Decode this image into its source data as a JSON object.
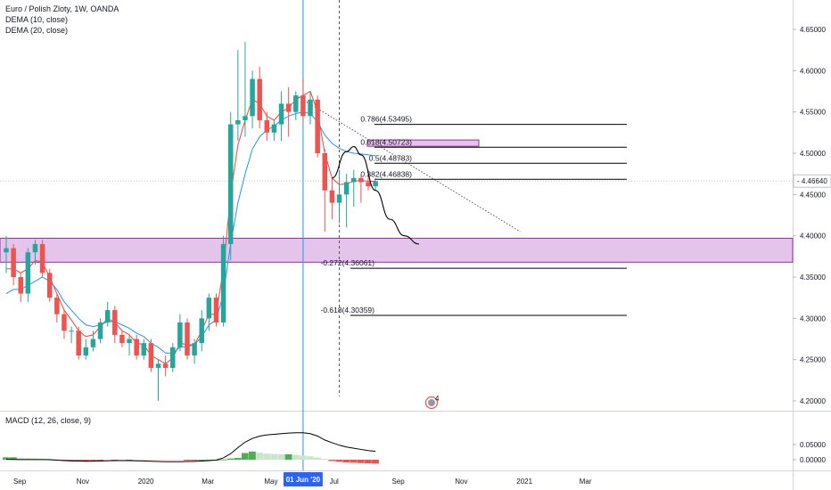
{
  "legend": {
    "symbol": "Euro / Polish Zloty, 1W, OANDA",
    "dema10": "DEMA (10, close)",
    "dema20": "DEMA (20, close)",
    "macd": "MACD (12, 26, close, 9)"
  },
  "colors": {
    "up": "#26a69a",
    "down": "#ef5350",
    "dema10": "#f44336",
    "dema20": "#2196f3",
    "zone_fill": "#ce93d8",
    "zone_border": "#9c27b0",
    "macd_line": "#000000",
    "hist_up_strong": "#4caf50",
    "hist_up_weak": "#c8e6c9",
    "hist_down_strong": "#ef5350",
    "hist_down_weak": "#ffcdd2"
  },
  "axis": {
    "price_ticks": [
      "4.65000",
      "4.60000",
      "4.55000",
      "4.50000",
      "4.45000",
      "4.40000",
      "4.35000",
      "4.30000",
      "4.25000",
      "4.20000"
    ],
    "current_price": "4.46640",
    "macd_ticks": [
      "0.05000",
      "0.00000"
    ],
    "time_ticks": [
      "Sep",
      "Nov",
      "2020",
      "Mar",
      "May",
      "Jul",
      "Sep",
      "Nov",
      "2021",
      "Mar"
    ],
    "cursor_date": "01 Jun '20"
  },
  "badge": {
    "count": "4"
  },
  "chart_data": {
    "type": "candlestick",
    "title": "Euro / Polish Zloty, 1W, OANDA",
    "x_range": [
      "2019-08-19",
      "2021-04-05"
    ],
    "y_range": [
      4.17,
      4.685
    ],
    "grid": false,
    "candles": [
      {
        "o": 4.38,
        "h": 4.4,
        "l": 4.355,
        "c": 4.385
      },
      {
        "o": 4.385,
        "h": 4.39,
        "l": 4.34,
        "c": 4.35
      },
      {
        "o": 4.35,
        "h": 4.355,
        "l": 4.32,
        "c": 4.33
      },
      {
        "o": 4.33,
        "h": 4.385,
        "l": 4.32,
        "c": 4.38
      },
      {
        "o": 4.38,
        "h": 4.395,
        "l": 4.365,
        "c": 4.39
      },
      {
        "o": 4.39,
        "h": 4.395,
        "l": 4.35,
        "c": 4.355
      },
      {
        "o": 4.355,
        "h": 4.36,
        "l": 4.32,
        "c": 4.325
      },
      {
        "o": 4.325,
        "h": 4.33,
        "l": 4.295,
        "c": 4.305
      },
      {
        "o": 4.305,
        "h": 4.31,
        "l": 4.275,
        "c": 4.285
      },
      {
        "o": 4.285,
        "h": 4.29,
        "l": 4.27,
        "c": 4.285
      },
      {
        "o": 4.285,
        "h": 4.29,
        "l": 4.25,
        "c": 4.255
      },
      {
        "o": 4.255,
        "h": 4.275,
        "l": 4.25,
        "c": 4.265
      },
      {
        "o": 4.265,
        "h": 4.285,
        "l": 4.26,
        "c": 4.275
      },
      {
        "o": 4.275,
        "h": 4.3,
        "l": 4.27,
        "c": 4.295
      },
      {
        "o": 4.295,
        "h": 4.32,
        "l": 4.29,
        "c": 4.31
      },
      {
        "o": 4.31,
        "h": 4.315,
        "l": 4.27,
        "c": 4.28
      },
      {
        "o": 4.28,
        "h": 4.285,
        "l": 4.265,
        "c": 4.27
      },
      {
        "o": 4.27,
        "h": 4.28,
        "l": 4.255,
        "c": 4.275
      },
      {
        "o": 4.275,
        "h": 4.28,
        "l": 4.25,
        "c": 4.255
      },
      {
        "o": 4.255,
        "h": 4.275,
        "l": 4.25,
        "c": 4.27
      },
      {
        "o": 4.27,
        "h": 4.275,
        "l": 4.235,
        "c": 4.24
      },
      {
        "o": 4.24,
        "h": 4.25,
        "l": 4.2,
        "c": 4.245
      },
      {
        "o": 4.245,
        "h": 4.255,
        "l": 4.23,
        "c": 4.24
      },
      {
        "o": 4.24,
        "h": 4.27,
        "l": 4.235,
        "c": 4.265
      },
      {
        "o": 4.265,
        "h": 4.305,
        "l": 4.26,
        "c": 4.295
      },
      {
        "o": 4.295,
        "h": 4.3,
        "l": 4.25,
        "c": 4.255
      },
      {
        "o": 4.255,
        "h": 4.275,
        "l": 4.245,
        "c": 4.27
      },
      {
        "o": 4.27,
        "h": 4.31,
        "l": 4.26,
        "c": 4.3
      },
      {
        "o": 4.3,
        "h": 4.33,
        "l": 4.285,
        "c": 4.325
      },
      {
        "o": 4.325,
        "h": 4.33,
        "l": 4.29,
        "c": 4.295
      },
      {
        "o": 4.295,
        "h": 4.4,
        "l": 4.29,
        "c": 4.39
      },
      {
        "o": 4.39,
        "h": 4.55,
        "l": 4.37,
        "c": 4.535
      },
      {
        "o": 4.535,
        "h": 4.625,
        "l": 4.515,
        "c": 4.54
      },
      {
        "o": 4.54,
        "h": 4.635,
        "l": 4.52,
        "c": 4.545
      },
      {
        "o": 4.545,
        "h": 4.6,
        "l": 4.53,
        "c": 4.59
      },
      {
        "o": 4.59,
        "h": 4.605,
        "l": 4.53,
        "c": 4.54
      },
      {
        "o": 4.54,
        "h": 4.55,
        "l": 4.515,
        "c": 4.525
      },
      {
        "o": 4.525,
        "h": 4.54,
        "l": 4.515,
        "c": 4.535
      },
      {
        "o": 4.535,
        "h": 4.575,
        "l": 4.515,
        "c": 4.56
      },
      {
        "o": 4.56,
        "h": 4.58,
        "l": 4.52,
        "c": 4.55
      },
      {
        "o": 4.55,
        "h": 4.575,
        "l": 4.54,
        "c": 4.57
      },
      {
        "o": 4.57,
        "h": 4.59,
        "l": 4.54,
        "c": 4.545
      },
      {
        "o": 4.545,
        "h": 4.575,
        "l": 4.535,
        "c": 4.565
      },
      {
        "o": 4.565,
        "h": 4.57,
        "l": 4.495,
        "c": 4.5
      },
      {
        "o": 4.5,
        "h": 4.505,
        "l": 4.405,
        "c": 4.455
      },
      {
        "o": 4.455,
        "h": 4.47,
        "l": 4.42,
        "c": 4.44
      },
      {
        "o": 4.44,
        "h": 4.48,
        "l": 4.415,
        "c": 4.45
      },
      {
        "o": 4.45,
        "h": 4.475,
        "l": 4.41,
        "c": 4.465
      },
      {
        "o": 4.465,
        "h": 4.48,
        "l": 4.435,
        "c": 4.47
      },
      {
        "o": 4.47,
        "h": 4.475,
        "l": 4.44,
        "c": 4.465
      },
      {
        "o": 4.465,
        "h": 4.48,
        "l": 4.455,
        "c": 4.46
      },
      {
        "o": 4.46,
        "h": 4.47,
        "l": 4.455,
        "c": 4.466
      }
    ],
    "dema10": [
      4.36,
      4.36,
      4.355,
      4.36,
      4.37,
      4.368,
      4.35,
      4.33,
      4.31,
      4.298,
      4.285,
      4.278,
      4.28,
      4.29,
      4.3,
      4.295,
      4.285,
      4.28,
      4.27,
      4.268,
      4.255,
      4.25,
      4.245,
      4.252,
      4.27,
      4.268,
      4.268,
      4.285,
      4.305,
      4.305,
      4.36,
      4.45,
      4.51,
      4.54,
      4.565,
      4.56,
      4.545,
      4.54,
      4.55,
      4.555,
      4.565,
      4.57,
      4.575,
      4.55,
      4.5,
      4.47,
      4.462,
      4.463,
      4.466,
      4.467,
      4.466,
      4.466
    ],
    "dema20": [
      4.33,
      4.335,
      4.335,
      4.34,
      4.345,
      4.35,
      4.345,
      4.335,
      4.32,
      4.31,
      4.3,
      4.292,
      4.29,
      4.292,
      4.296,
      4.296,
      4.292,
      4.288,
      4.282,
      4.278,
      4.27,
      4.265,
      4.258,
      4.258,
      4.265,
      4.266,
      4.268,
      4.278,
      4.292,
      4.298,
      4.33,
      4.39,
      4.44,
      4.475,
      4.505,
      4.52,
      4.528,
      4.533,
      4.54,
      4.545,
      4.548,
      4.55,
      4.548,
      4.538,
      4.522,
      4.512,
      4.506,
      4.502,
      4.5,
      4.499,
      4.498,
      4.497
    ],
    "macd": [
      0.001,
      0.0008,
      0.0005,
      0.0004,
      0.0004,
      0.0003,
      0.0001,
      -0.0015,
      -0.003,
      -0.004,
      -0.0045,
      -0.005,
      -0.0048,
      -0.004,
      -0.0035,
      -0.003,
      -0.0028,
      -0.003,
      -0.0035,
      -0.004,
      -0.005,
      -0.006,
      -0.0065,
      -0.0068,
      -0.0065,
      -0.006,
      -0.0055,
      -0.0045,
      -0.003,
      -0.001,
      0.006,
      0.02,
      0.04,
      0.058,
      0.07,
      0.078,
      0.082,
      0.084,
      0.086,
      0.088,
      0.089,
      0.089,
      0.086,
      0.078,
      0.065,
      0.056,
      0.048,
      0.042,
      0.038,
      0.034,
      0.03,
      0.028
    ],
    "histogram": [
      0.008,
      0.008,
      0.007,
      0.006,
      0.005,
      0.004,
      0.003,
      0.002,
      -0.001,
      -0.003,
      -0.004,
      -0.005,
      -0.005,
      -0.005,
      -0.0045,
      -0.0045,
      -0.004,
      -0.004,
      -0.0035,
      -0.003,
      -0.0025,
      -0.002,
      -0.0015,
      -0.001,
      -0.0005,
      -0.0005,
      -0.001,
      0.0,
      0.0,
      0.0,
      0.001,
      0.004,
      0.006,
      0.022,
      0.027,
      0.023,
      0.02,
      0.019,
      0.018,
      0.018,
      0.016,
      0.014,
      0.011,
      0.007,
      0.003,
      -0.004,
      -0.007,
      -0.009,
      -0.01,
      -0.011,
      -0.012,
      -0.013
    ],
    "fib_levels": [
      {
        "label": "0.786(4.53495)",
        "price": 4.53495
      },
      {
        "label": "0.618(4.50723)",
        "price": 4.50723
      },
      {
        "label": "0.5(4.48783)",
        "price": 4.48783
      },
      {
        "label": "0.382(4.46838)",
        "price": 4.46838
      },
      {
        "label": "-0.272(4.36061)",
        "price": 4.36061
      },
      {
        "label": "-0.618(4.30359)",
        "price": 4.30359
      }
    ],
    "zones": [
      {
        "from": 4.368,
        "to": 4.397
      },
      {
        "from": 4.5095,
        "to": 4.515
      }
    ],
    "trendline": {
      "from": {
        "date": "2020-05-25",
        "price": 4.57
      },
      "to": {
        "date": "2020-12-28",
        "price": 4.405
      }
    },
    "projection": [
      {
        "date": "2020-06-29",
        "price": 4.47
      },
      {
        "date": "2020-07-13",
        "price": 4.502
      },
      {
        "date": "2020-07-20",
        "price": 4.508
      },
      {
        "date": "2020-07-27",
        "price": 4.498
      },
      {
        "date": "2020-08-10",
        "price": 4.455
      },
      {
        "date": "2020-08-24",
        "price": 4.42
      },
      {
        "date": "2020-09-07",
        "price": 4.4
      },
      {
        "date": "2020-09-21",
        "price": 4.39
      }
    ],
    "cursor": "2020-06-01",
    "vertical_marker": "2020-07-06"
  }
}
